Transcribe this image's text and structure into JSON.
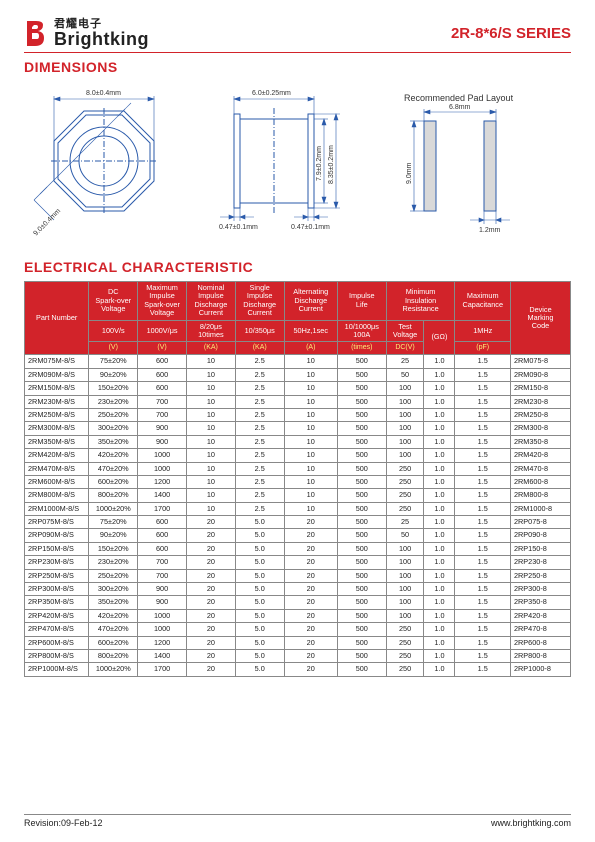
{
  "header": {
    "logo_cn": "君耀电子",
    "logo_en": "Brightking",
    "series": "2R-8*6/S SERIES"
  },
  "sections": {
    "dimensions": "DIMENSIONS",
    "electrical": "ELECTRICAL CHARACTERISTIC"
  },
  "diagrams": {
    "oct_od": "8.0±0.4mm",
    "oct_flat": "9.0±0.4mm",
    "side_len": "6.0±0.25mm",
    "side_h1": "7.9±0.2mm",
    "side_h2": "8.35±0.2mm",
    "side_lip": "0.47±0.1mm",
    "side_lip2": "0.47±0.1mm",
    "pad_title": "Recommended Pad Layout",
    "pad_w": "6.8mm",
    "pad_h": "9.0mm",
    "pad_gap": "1.2mm"
  },
  "table": {
    "columns": {
      "part": "Part Number",
      "dc": "DC\nSpark-over\nVoltage",
      "max_imp": "Maximum\nImpulse\nSpark-over\nVoltage",
      "nom_imp": "Nominal\nImpulse\nDischarge\nCurrent",
      "sing_imp": "Single\nImpulse\nDischarge\nCurrent",
      "alt": "Alternating\nDischarge\nCurrent",
      "life": "Impulse\nLife",
      "ins": "Minimum\nInsulation\nResistance",
      "cap": "Maximum\nCapacitance",
      "mark": "Device\nMarking\nCode"
    },
    "subcols": {
      "dc_rate": "100V/s",
      "max_rate": "1000V/μs",
      "nom_wave": "8/20μs\n10times",
      "sing_wave": "10/350μs",
      "alt_cond": "50Hz,1sec",
      "life_cond": "10/1000μs\n100A",
      "ins_test": "Test\nVoltage",
      "ins_unit": "(GΩ)",
      "cap_freq": "1MHz"
    },
    "units": {
      "dc": "(V)",
      "max": "(V)",
      "nom": "(KA)",
      "sing": "(KA)",
      "alt": "(A)",
      "life": "(times)",
      "ins": "DC(V)",
      "cap": "(pF)"
    },
    "rows": [
      {
        "pn": "2RM075M-8/S",
        "dc": "75±20%",
        "max": "600",
        "nom": "10",
        "sing": "2.5",
        "alt": "10",
        "life": "500",
        "tv": "25",
        "go": "1.0",
        "cap": "1.5",
        "mark": "2RM075-8"
      },
      {
        "pn": "2RM090M-8/S",
        "dc": "90±20%",
        "max": "600",
        "nom": "10",
        "sing": "2.5",
        "alt": "10",
        "life": "500",
        "tv": "50",
        "go": "1.0",
        "cap": "1.5",
        "mark": "2RM090-8"
      },
      {
        "pn": "2RM150M-8/S",
        "dc": "150±20%",
        "max": "600",
        "nom": "10",
        "sing": "2.5",
        "alt": "10",
        "life": "500",
        "tv": "100",
        "go": "1.0",
        "cap": "1.5",
        "mark": "2RM150-8"
      },
      {
        "pn": "2RM230M-8/S",
        "dc": "230±20%",
        "max": "700",
        "nom": "10",
        "sing": "2.5",
        "alt": "10",
        "life": "500",
        "tv": "100",
        "go": "1.0",
        "cap": "1.5",
        "mark": "2RM230-8"
      },
      {
        "pn": "2RM250M-8/S",
        "dc": "250±20%",
        "max": "700",
        "nom": "10",
        "sing": "2.5",
        "alt": "10",
        "life": "500",
        "tv": "100",
        "go": "1.0",
        "cap": "1.5",
        "mark": "2RM250-8"
      },
      {
        "pn": "2RM300M-8/S",
        "dc": "300±20%",
        "max": "900",
        "nom": "10",
        "sing": "2.5",
        "alt": "10",
        "life": "500",
        "tv": "100",
        "go": "1.0",
        "cap": "1.5",
        "mark": "2RM300-8"
      },
      {
        "pn": "2RM350M-8/S",
        "dc": "350±20%",
        "max": "900",
        "nom": "10",
        "sing": "2.5",
        "alt": "10",
        "life": "500",
        "tv": "100",
        "go": "1.0",
        "cap": "1.5",
        "mark": "2RM350-8"
      },
      {
        "pn": "2RM420M-8/S",
        "dc": "420±20%",
        "max": "1000",
        "nom": "10",
        "sing": "2.5",
        "alt": "10",
        "life": "500",
        "tv": "100",
        "go": "1.0",
        "cap": "1.5",
        "mark": "2RM420-8"
      },
      {
        "pn": "2RM470M-8/S",
        "dc": "470±20%",
        "max": "1000",
        "nom": "10",
        "sing": "2.5",
        "alt": "10",
        "life": "500",
        "tv": "250",
        "go": "1.0",
        "cap": "1.5",
        "mark": "2RM470-8"
      },
      {
        "pn": "2RM600M-8/S",
        "dc": "600±20%",
        "max": "1200",
        "nom": "10",
        "sing": "2.5",
        "alt": "10",
        "life": "500",
        "tv": "250",
        "go": "1.0",
        "cap": "1.5",
        "mark": "2RM600-8"
      },
      {
        "pn": "2RM800M-8/S",
        "dc": "800±20%",
        "max": "1400",
        "nom": "10",
        "sing": "2.5",
        "alt": "10",
        "life": "500",
        "tv": "250",
        "go": "1.0",
        "cap": "1.5",
        "mark": "2RM800-8"
      },
      {
        "pn": "2RM1000M-8/S",
        "dc": "1000±20%",
        "max": "1700",
        "nom": "10",
        "sing": "2.5",
        "alt": "10",
        "life": "500",
        "tv": "250",
        "go": "1.0",
        "cap": "1.5",
        "mark": "2RM1000-8"
      },
      {
        "pn": "2RP075M-8/S",
        "dc": "75±20%",
        "max": "600",
        "nom": "20",
        "sing": "5.0",
        "alt": "20",
        "life": "500",
        "tv": "25",
        "go": "1.0",
        "cap": "1.5",
        "mark": "2RP075-8"
      },
      {
        "pn": "2RP090M-8/S",
        "dc": "90±20%",
        "max": "600",
        "nom": "20",
        "sing": "5.0",
        "alt": "20",
        "life": "500",
        "tv": "50",
        "go": "1.0",
        "cap": "1.5",
        "mark": "2RP090-8"
      },
      {
        "pn": "2RP150M-8/S",
        "dc": "150±20%",
        "max": "600",
        "nom": "20",
        "sing": "5.0",
        "alt": "20",
        "life": "500",
        "tv": "100",
        "go": "1.0",
        "cap": "1.5",
        "mark": "2RP150-8"
      },
      {
        "pn": "2RP230M-8/S",
        "dc": "230±20%",
        "max": "700",
        "nom": "20",
        "sing": "5.0",
        "alt": "20",
        "life": "500",
        "tv": "100",
        "go": "1.0",
        "cap": "1.5",
        "mark": "2RP230-8"
      },
      {
        "pn": "2RP250M-8/S",
        "dc": "250±20%",
        "max": "700",
        "nom": "20",
        "sing": "5.0",
        "alt": "20",
        "life": "500",
        "tv": "100",
        "go": "1.0",
        "cap": "1.5",
        "mark": "2RP250-8"
      },
      {
        "pn": "2RP300M-8/S",
        "dc": "300±20%",
        "max": "900",
        "nom": "20",
        "sing": "5.0",
        "alt": "20",
        "life": "500",
        "tv": "100",
        "go": "1.0",
        "cap": "1.5",
        "mark": "2RP300-8"
      },
      {
        "pn": "2RP350M-8/S",
        "dc": "350±20%",
        "max": "900",
        "nom": "20",
        "sing": "5.0",
        "alt": "20",
        "life": "500",
        "tv": "100",
        "go": "1.0",
        "cap": "1.5",
        "mark": "2RP350-8"
      },
      {
        "pn": "2RP420M-8/S",
        "dc": "420±20%",
        "max": "1000",
        "nom": "20",
        "sing": "5.0",
        "alt": "20",
        "life": "500",
        "tv": "100",
        "go": "1.0",
        "cap": "1.5",
        "mark": "2RP420-8"
      },
      {
        "pn": "2RP470M-8/S",
        "dc": "470±20%",
        "max": "1000",
        "nom": "20",
        "sing": "5.0",
        "alt": "20",
        "life": "500",
        "tv": "250",
        "go": "1.0",
        "cap": "1.5",
        "mark": "2RP470-8"
      },
      {
        "pn": "2RP600M-8/S",
        "dc": "600±20%",
        "max": "1200",
        "nom": "20",
        "sing": "5.0",
        "alt": "20",
        "life": "500",
        "tv": "250",
        "go": "1.0",
        "cap": "1.5",
        "mark": "2RP600-8"
      },
      {
        "pn": "2RP800M-8/S",
        "dc": "800±20%",
        "max": "1400",
        "nom": "20",
        "sing": "5.0",
        "alt": "20",
        "life": "500",
        "tv": "250",
        "go": "1.0",
        "cap": "1.5",
        "mark": "2RP800-8"
      },
      {
        "pn": "2RP1000M-8/S",
        "dc": "1000±20%",
        "max": "1700",
        "nom": "20",
        "sing": "5.0",
        "alt": "20",
        "life": "500",
        "tv": "250",
        "go": "1.0",
        "cap": "1.5",
        "mark": "2RP1000-8"
      }
    ]
  },
  "footer": {
    "rev": "Revision:09-Feb-12",
    "url": "www.brightking.com"
  }
}
